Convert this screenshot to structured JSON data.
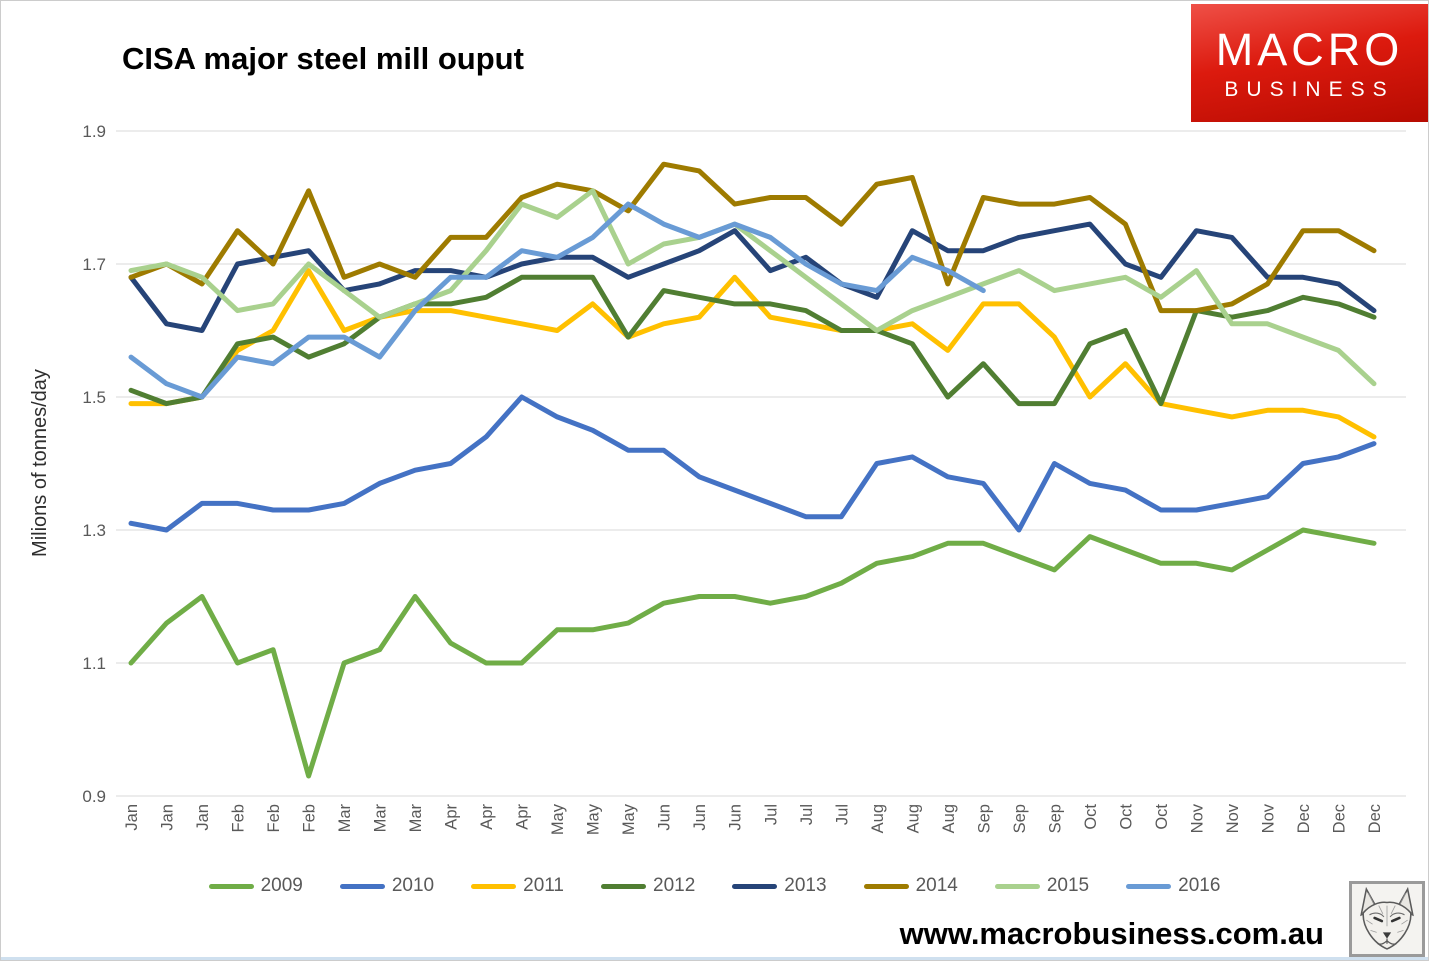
{
  "page_title": "CISA major steel mill ouput",
  "logo": {
    "line1": "MACRO",
    "line2": "BUSINESS",
    "background": "#cf1105"
  },
  "footer": {
    "url": "www.macrobusiness.com.au"
  },
  "colors": {
    "grid": "#D9D9D9",
    "tick_text": "#595959",
    "axis_title_text": "#2e2e2e"
  },
  "chart_data": {
    "type": "line",
    "title": "CISA major steel mill ouput",
    "xlabel": "",
    "ylabel": "Milions of tonnes/day",
    "ylim": [
      0.9,
      1.9
    ],
    "yticks": [
      0.9,
      1.1,
      1.3,
      1.5,
      1.7,
      1.9
    ],
    "grid": true,
    "legend_position": "bottom",
    "x_note": "three 10-day readings per month",
    "categories": [
      "Jan",
      "Jan",
      "Jan",
      "Feb",
      "Feb",
      "Feb",
      "Mar",
      "Mar",
      "Mar",
      "Apr",
      "Apr",
      "Apr",
      "May",
      "May",
      "May",
      "Jun",
      "Jun",
      "Jun",
      "Jul",
      "Jul",
      "Jul",
      "Aug",
      "Aug",
      "Aug",
      "Sep",
      "Sep",
      "Sep",
      "Oct",
      "Oct",
      "Oct",
      "Nov",
      "Nov",
      "Nov",
      "Dec",
      "Dec",
      "Dec"
    ],
    "series": [
      {
        "name": "2009",
        "color": "#70AD47",
        "values": [
          1.1,
          1.16,
          1.2,
          1.1,
          1.12,
          0.93,
          1.1,
          1.12,
          1.2,
          1.13,
          1.1,
          1.1,
          1.15,
          1.15,
          1.16,
          1.19,
          1.2,
          1.2,
          1.19,
          1.2,
          1.22,
          1.25,
          1.26,
          1.28,
          1.28,
          1.26,
          1.24,
          1.29,
          1.27,
          1.25,
          1.25,
          1.24,
          1.27,
          1.3,
          1.29,
          1.28
        ]
      },
      {
        "name": "2010",
        "color": "#4472C4",
        "values": [
          1.31,
          1.3,
          1.34,
          1.34,
          1.33,
          1.33,
          1.34,
          1.37,
          1.39,
          1.4,
          1.44,
          1.5,
          1.47,
          1.45,
          1.42,
          1.42,
          1.38,
          1.36,
          1.34,
          1.32,
          1.32,
          1.4,
          1.41,
          1.38,
          1.37,
          1.3,
          1.4,
          1.37,
          1.36,
          1.33,
          1.33,
          1.34,
          1.35,
          1.4,
          1.41,
          1.43
        ]
      },
      {
        "name": "2011",
        "color": "#FFC000",
        "values": [
          1.49,
          1.49,
          1.5,
          1.57,
          1.6,
          1.69,
          1.6,
          1.62,
          1.63,
          1.63,
          1.62,
          1.61,
          1.6,
          1.64,
          1.59,
          1.61,
          1.62,
          1.68,
          1.62,
          1.61,
          1.6,
          1.6,
          1.61,
          1.57,
          1.64,
          1.64,
          1.59,
          1.5,
          1.55,
          1.49,
          1.48,
          1.47,
          1.48,
          1.48,
          1.47,
          1.44
        ]
      },
      {
        "name": "2012",
        "color": "#507E32",
        "values": [
          1.51,
          1.49,
          1.5,
          1.58,
          1.59,
          1.56,
          1.58,
          1.62,
          1.64,
          1.64,
          1.65,
          1.68,
          1.68,
          1.68,
          1.59,
          1.66,
          1.65,
          1.64,
          1.64,
          1.63,
          1.6,
          1.6,
          1.58,
          1.5,
          1.55,
          1.49,
          1.49,
          1.58,
          1.6,
          1.49,
          1.63,
          1.62,
          1.63,
          1.65,
          1.64,
          1.62
        ]
      },
      {
        "name": "2013",
        "color": "#264478",
        "values": [
          1.68,
          1.61,
          1.6,
          1.7,
          1.71,
          1.72,
          1.66,
          1.67,
          1.69,
          1.69,
          1.68,
          1.7,
          1.71,
          1.71,
          1.68,
          1.7,
          1.72,
          1.75,
          1.69,
          1.71,
          1.67,
          1.65,
          1.75,
          1.72,
          1.72,
          1.74,
          1.75,
          1.76,
          1.7,
          1.68,
          1.75,
          1.74,
          1.68,
          1.68,
          1.67,
          1.63
        ]
      },
      {
        "name": "2014",
        "color": "#9E7B00",
        "values": [
          1.68,
          1.7,
          1.67,
          1.75,
          1.7,
          1.81,
          1.68,
          1.7,
          1.68,
          1.74,
          1.74,
          1.8,
          1.82,
          1.81,
          1.78,
          1.85,
          1.84,
          1.79,
          1.8,
          1.8,
          1.76,
          1.82,
          1.83,
          1.67,
          1.8,
          1.79,
          1.79,
          1.8,
          1.76,
          1.63,
          1.63,
          1.64,
          1.67,
          1.75,
          1.75,
          1.72
        ]
      },
      {
        "name": "2015",
        "color": "#A9D18E",
        "values": [
          1.69,
          1.7,
          1.68,
          1.63,
          1.64,
          1.7,
          1.66,
          1.62,
          1.64,
          1.66,
          1.72,
          1.79,
          1.77,
          1.81,
          1.7,
          1.73,
          1.74,
          1.76,
          1.72,
          1.68,
          1.64,
          1.6,
          1.63,
          1.65,
          1.67,
          1.69,
          1.66,
          1.67,
          1.68,
          1.65,
          1.69,
          1.61,
          1.61,
          1.59,
          1.57,
          1.52
        ]
      },
      {
        "name": "2016",
        "color": "#699BD5",
        "values": [
          1.56,
          1.52,
          1.5,
          1.56,
          1.55,
          1.59,
          1.59,
          1.56,
          1.63,
          1.68,
          1.68,
          1.72,
          1.71,
          1.74,
          1.79,
          1.76,
          1.74,
          1.76,
          1.74,
          1.7,
          1.67,
          1.66,
          1.71,
          1.69,
          1.66
        ]
      }
    ]
  }
}
